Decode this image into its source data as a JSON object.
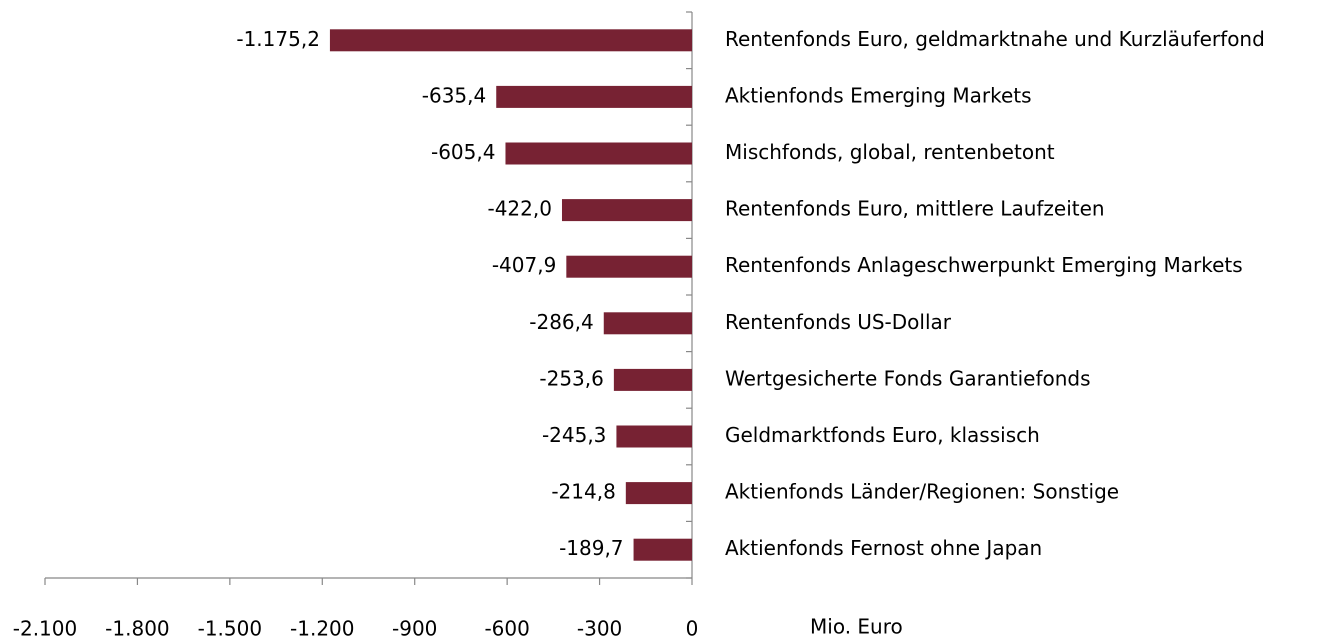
{
  "chart_data": {
    "type": "bar",
    "orientation": "horizontal",
    "categories": [
      "Rentenfonds Euro, geldmarktnahe und Kurzläuferfond",
      "Aktienfonds Emerging Markets",
      "Mischfonds, global, rentenbetont",
      "Rentenfonds Euro, mittlere Laufzeiten",
      "Rentenfonds Anlageschwerpunkt  Emerging Markets",
      "Rentenfonds US-Dollar",
      "Wertgesicherte Fonds Garantiefonds",
      "Geldmarktfonds Euro, klassisch",
      "Aktienfonds Länder/Regionen: Sonstige",
      "Aktienfonds Fernost ohne Japan"
    ],
    "values": [
      -1175.2,
      -635.4,
      -605.4,
      -422.0,
      -407.9,
      -286.4,
      -253.6,
      -245.3,
      -214.8,
      -189.7
    ],
    "value_labels": [
      "-1.175,2",
      "-635,4",
      "-605,4",
      "-422,0",
      "-407,9",
      "-286,4",
      "-253,6",
      "-245,3",
      "-214,8",
      "-189,7"
    ],
    "color": "#772233",
    "xlim": [
      -2100,
      0
    ],
    "xticks": [
      {
        "value": -2100,
        "label": "-2.100"
      },
      {
        "value": -1800,
        "label": "-1.800"
      },
      {
        "value": -1500,
        "label": "-1.500"
      },
      {
        "value": -1200,
        "label": "-1.200"
      },
      -900,
      -600,
      -300,
      0
    ],
    "x_label": "Mio. Euro"
  }
}
